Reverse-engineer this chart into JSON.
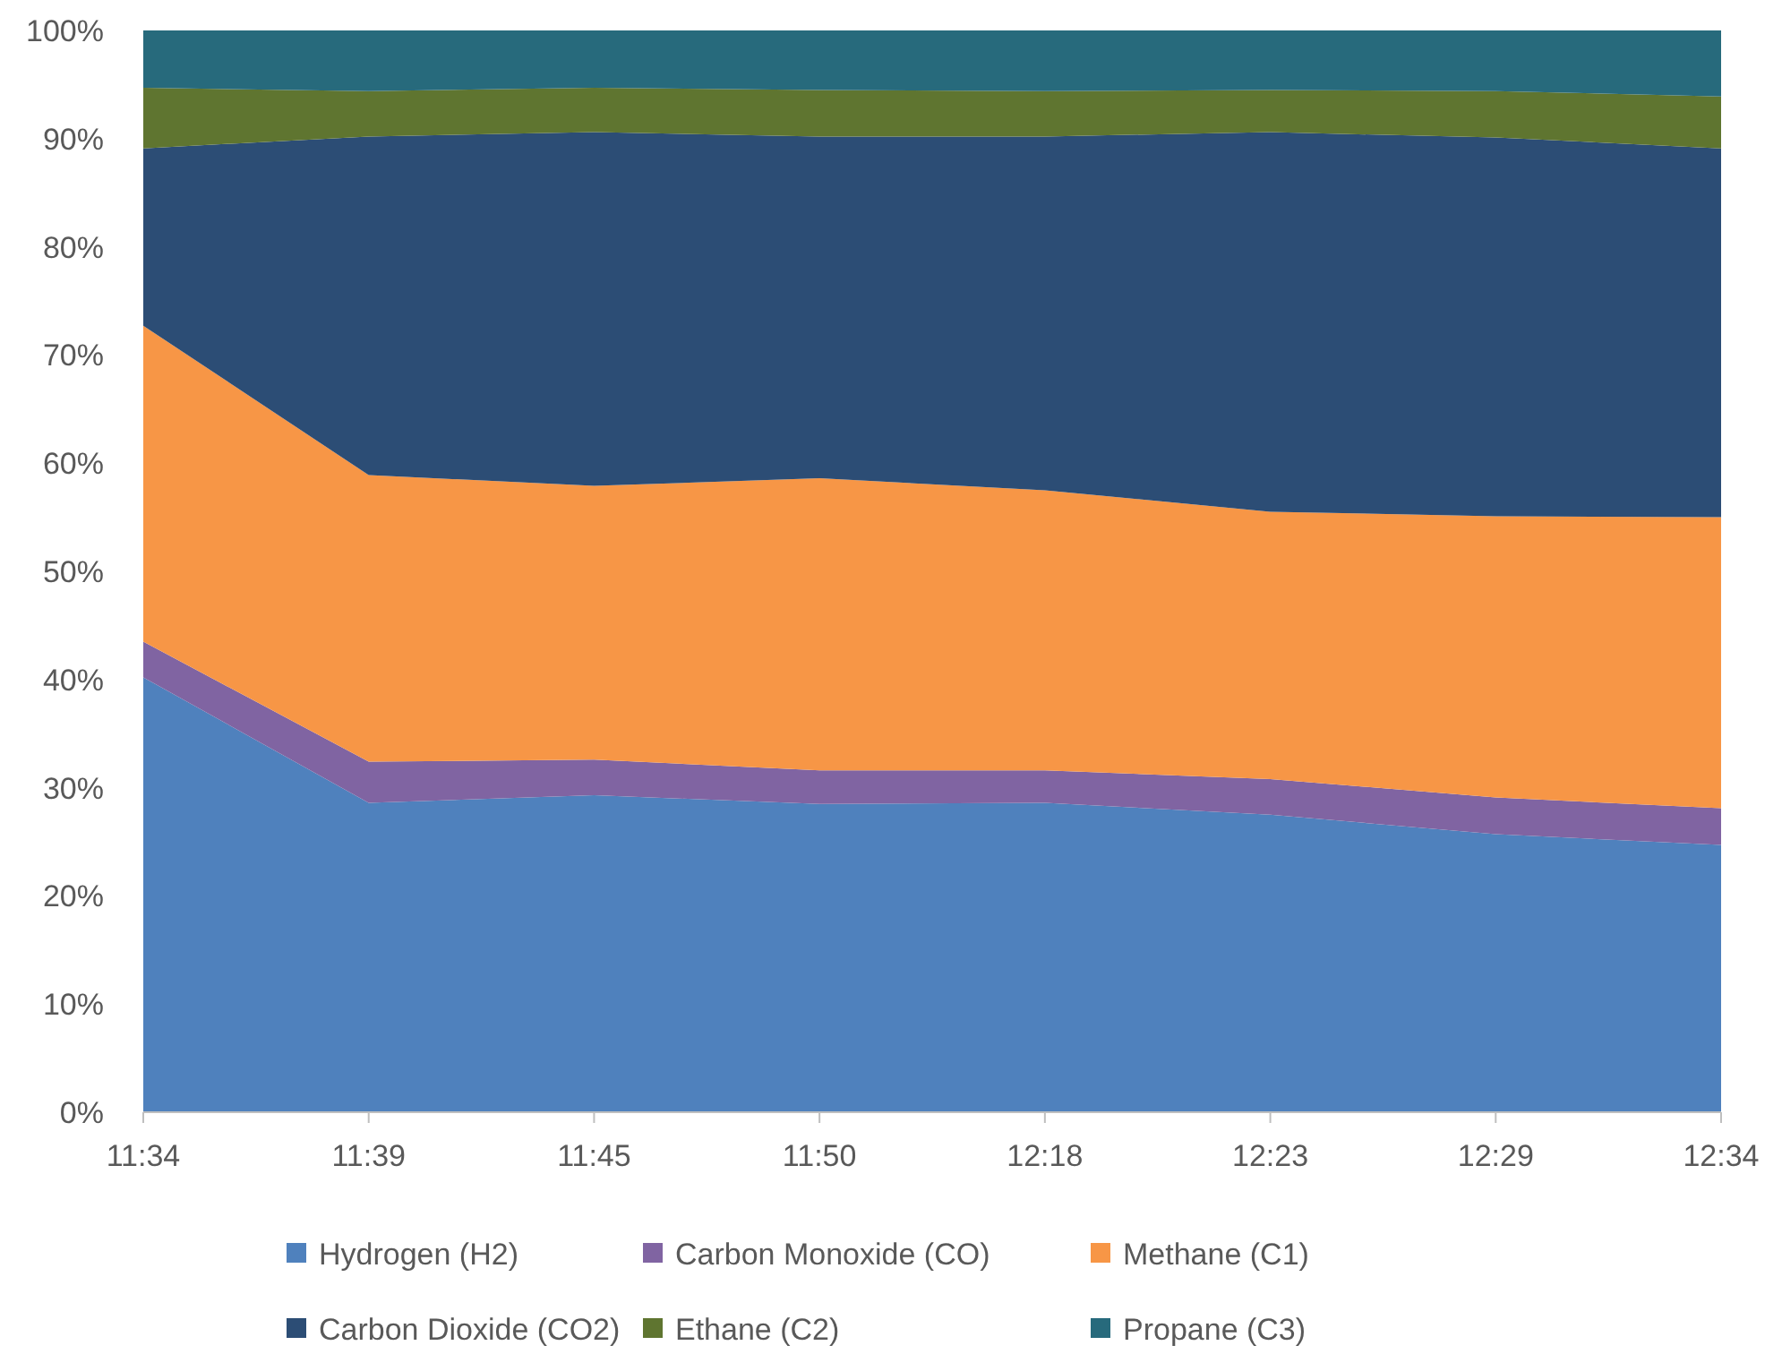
{
  "chart_data": {
    "type": "area",
    "stacked": true,
    "categories": [
      "11:34",
      "11:39",
      "11:45",
      "11:50",
      "12:18",
      "12:23",
      "12:29",
      "12:34"
    ],
    "series": [
      {
        "name": "Hydrogen (H2)",
        "color": "#4f81bd",
        "values": [
          40.2,
          28.6,
          29.3,
          28.5,
          28.6,
          27.5,
          25.7,
          24.7
        ]
      },
      {
        "name": "Carbon Monoxide (CO)",
        "color": "#8064a2",
        "values": [
          3.3,
          3.8,
          3.3,
          3.1,
          3.0,
          3.3,
          3.4,
          3.4
        ]
      },
      {
        "name": "Methane (C1)",
        "color": "#f79646",
        "values": [
          29.2,
          26.5,
          25.3,
          27.0,
          25.9,
          24.7,
          26.0,
          26.9
        ]
      },
      {
        "name": "Carbon Dioxide (CO2)",
        "color": "#2c4d75",
        "values": [
          16.4,
          31.3,
          32.7,
          31.6,
          32.7,
          35.1,
          35.0,
          34.1
        ]
      },
      {
        "name": "Ethane (C2)",
        "color": "#5f7530",
        "values": [
          5.6,
          4.2,
          4.1,
          4.3,
          4.2,
          3.9,
          4.3,
          4.8
        ]
      },
      {
        "name": "Propane (C3)",
        "color": "#276a7c",
        "values": [
          5.3,
          5.6,
          5.3,
          5.5,
          5.6,
          5.5,
          5.6,
          6.1
        ]
      }
    ],
    "ylim": [
      0,
      100
    ],
    "yticks": [
      {
        "value": 0,
        "label": "0%"
      },
      {
        "value": 10,
        "label": "10%"
      },
      {
        "value": 20,
        "label": "20%"
      },
      {
        "value": 30,
        "label": "30%"
      },
      {
        "value": 40,
        "label": "40%"
      },
      {
        "value": 50,
        "label": "50%"
      },
      {
        "value": 60,
        "label": "60%"
      },
      {
        "value": 70,
        "label": "70%"
      },
      {
        "value": 80,
        "label": "80%"
      },
      {
        "value": 90,
        "label": "90%"
      },
      {
        "value": 100,
        "label": "100%"
      }
    ],
    "legend": "bottom"
  }
}
